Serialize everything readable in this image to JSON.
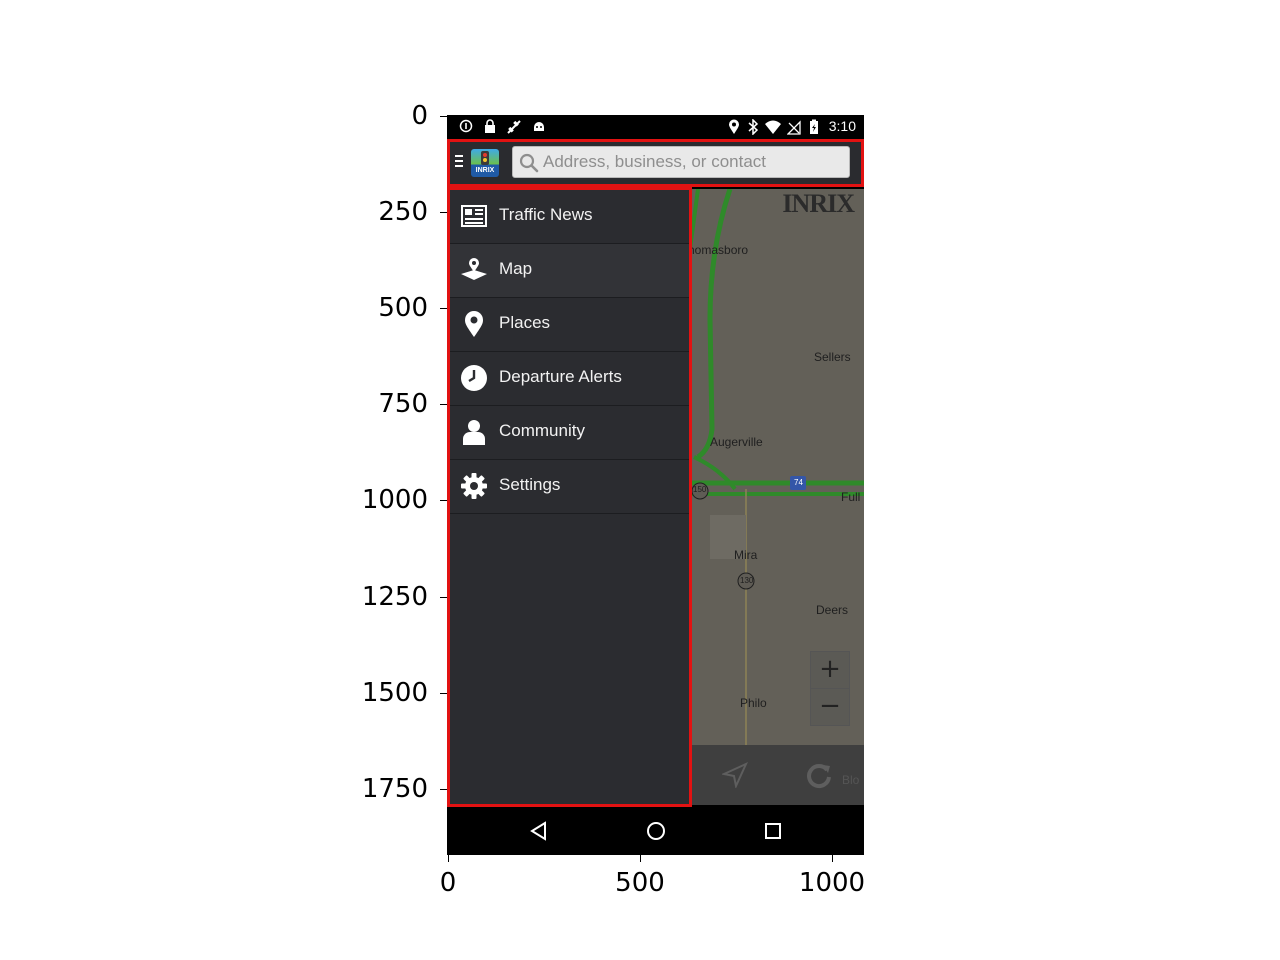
{
  "axes": {
    "y_ticks": [
      "0",
      "250",
      "500",
      "750",
      "1000",
      "1250",
      "1500",
      "1750"
    ],
    "x_ticks": [
      "0",
      "500",
      "1000"
    ]
  },
  "status_bar": {
    "time": "3:10",
    "left_icons": [
      "info-icon",
      "lock-icon",
      "satellite-icon",
      "android-icon"
    ],
    "right_icons": [
      "location-icon",
      "bluetooth-icon",
      "wifi-icon",
      "no-signal-icon",
      "battery-icon"
    ]
  },
  "app_bar": {
    "logo_text": "INRIX",
    "search_placeholder": "Address, business, or contact",
    "search_value": ""
  },
  "drawer": {
    "items": [
      {
        "label": "Traffic News",
        "icon": "newspaper-icon"
      },
      {
        "label": "Map",
        "icon": "map-pin-icon"
      },
      {
        "label": "Places",
        "icon": "place-marker-icon"
      },
      {
        "label": "Departure Alerts",
        "icon": "clock-icon"
      },
      {
        "label": "Community",
        "icon": "person-icon"
      },
      {
        "label": "Settings",
        "icon": "gear-icon"
      }
    ],
    "selected_index": 1
  },
  "map": {
    "brand": "INRIX",
    "labels": {
      "thomasboro": "homasboro",
      "sellers": "Sellers",
      "augerville": "Augerville",
      "fuller": "Full",
      "mira": "Mira",
      "deers": "Deers",
      "philo": "Philo"
    },
    "shields": {
      "route150": "150",
      "i74": "74",
      "route130": "130"
    },
    "zoom_in": "+",
    "zoom_out": "−",
    "footer_text": "Blo"
  },
  "colors": {
    "highlight": "#e21212",
    "drawer_bg": "#2b2c30",
    "road_green": "#2f8a2a"
  }
}
